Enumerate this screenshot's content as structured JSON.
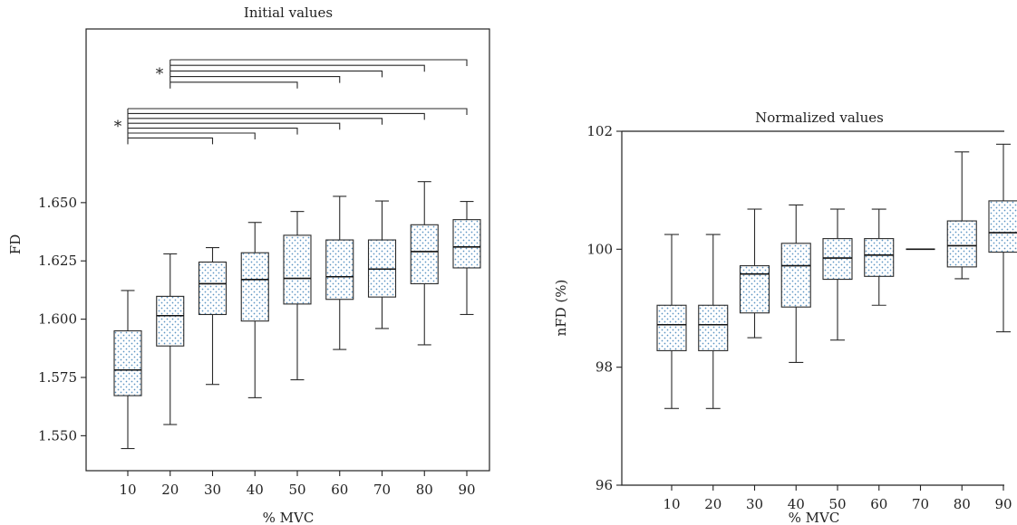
{
  "chart_data": [
    {
      "type": "box",
      "title": "Initial values",
      "xlabel": "% MVC",
      "ylabel": "FD",
      "categories": [
        "10",
        "20",
        "30",
        "40",
        "50",
        "60",
        "70",
        "80",
        "90"
      ],
      "y_ticks": [
        "1.550",
        "1.575",
        "1.600",
        "1.625",
        "1.650"
      ],
      "ylim": [
        1.535,
        1.7245
      ],
      "boxes": [
        {
          "min": 1.5445,
          "q1": 1.5672,
          "median": 1.5782,
          "q3": 1.595,
          "max": 1.6123
        },
        {
          "min": 1.5548,
          "q1": 1.5885,
          "median": 1.6015,
          "q3": 1.6098,
          "max": 1.628
        },
        {
          "min": 1.572,
          "q1": 1.602,
          "median": 1.6152,
          "q3": 1.6245,
          "max": 1.6307
        },
        {
          "min": 1.5663,
          "q1": 1.5992,
          "median": 1.617,
          "q3": 1.6285,
          "max": 1.6415
        },
        {
          "min": 1.574,
          "q1": 1.6065,
          "median": 1.6175,
          "q3": 1.636,
          "max": 1.6462
        },
        {
          "min": 1.587,
          "q1": 1.6085,
          "median": 1.6182,
          "q3": 1.634,
          "max": 1.6527
        },
        {
          "min": 1.596,
          "q1": 1.6095,
          "median": 1.6215,
          "q3": 1.634,
          "max": 1.6507
        },
        {
          "min": 1.589,
          "q1": 1.6152,
          "median": 1.629,
          "q3": 1.6405,
          "max": 1.659
        },
        {
          "min": 1.602,
          "q1": 1.622,
          "median": 1.631,
          "q3": 1.6427,
          "max": 1.6505
        }
      ],
      "significance": [
        {
          "label": "*",
          "from": "20",
          "to": [
            "50",
            "60",
            "70",
            "80",
            "90"
          ]
        },
        {
          "label": "*",
          "from": "10",
          "to": [
            "30",
            "40",
            "50",
            "60",
            "70",
            "80",
            "90"
          ]
        }
      ],
      "fill_color": "#5b94c2"
    },
    {
      "type": "box",
      "title": "Normalized values",
      "xlabel": "% MVC",
      "ylabel": "nFD (%)",
      "categories": [
        "10",
        "20",
        "30",
        "40",
        "50",
        "60",
        "70",
        "80",
        "90"
      ],
      "y_ticks": [
        "96",
        "98",
        "100",
        "102"
      ],
      "ylim": [
        96,
        102
      ],
      "boxes": [
        {
          "min": 97.3,
          "q1": 98.28,
          "median": 98.72,
          "q3": 99.05,
          "max": 100.25
        },
        {
          "min": 97.3,
          "q1": 98.28,
          "median": 98.72,
          "q3": 99.05,
          "max": 100.25
        },
        {
          "min": 98.5,
          "q1": 98.92,
          "median": 99.58,
          "q3": 99.72,
          "max": 100.68
        },
        {
          "min": 98.08,
          "q1": 99.02,
          "median": 99.72,
          "q3": 100.1,
          "max": 100.75
        },
        {
          "min": 98.46,
          "q1": 99.49,
          "median": 99.85,
          "q3": 100.18,
          "max": 100.68
        },
        {
          "min": 99.05,
          "q1": 99.54,
          "median": 99.9,
          "q3": 100.18,
          "max": 100.68
        },
        {
          "min": 100.0,
          "q1": 100.0,
          "median": 100.0,
          "q3": 100.0,
          "max": 100.0
        },
        {
          "min": 99.5,
          "q1": 99.7,
          "median": 100.06,
          "q3": 100.48,
          "max": 101.65
        },
        {
          "min": 98.6,
          "q1": 99.95,
          "median": 100.28,
          "q3": 100.82,
          "max": 101.78
        }
      ],
      "fill_color": "#5b94c2"
    }
  ]
}
